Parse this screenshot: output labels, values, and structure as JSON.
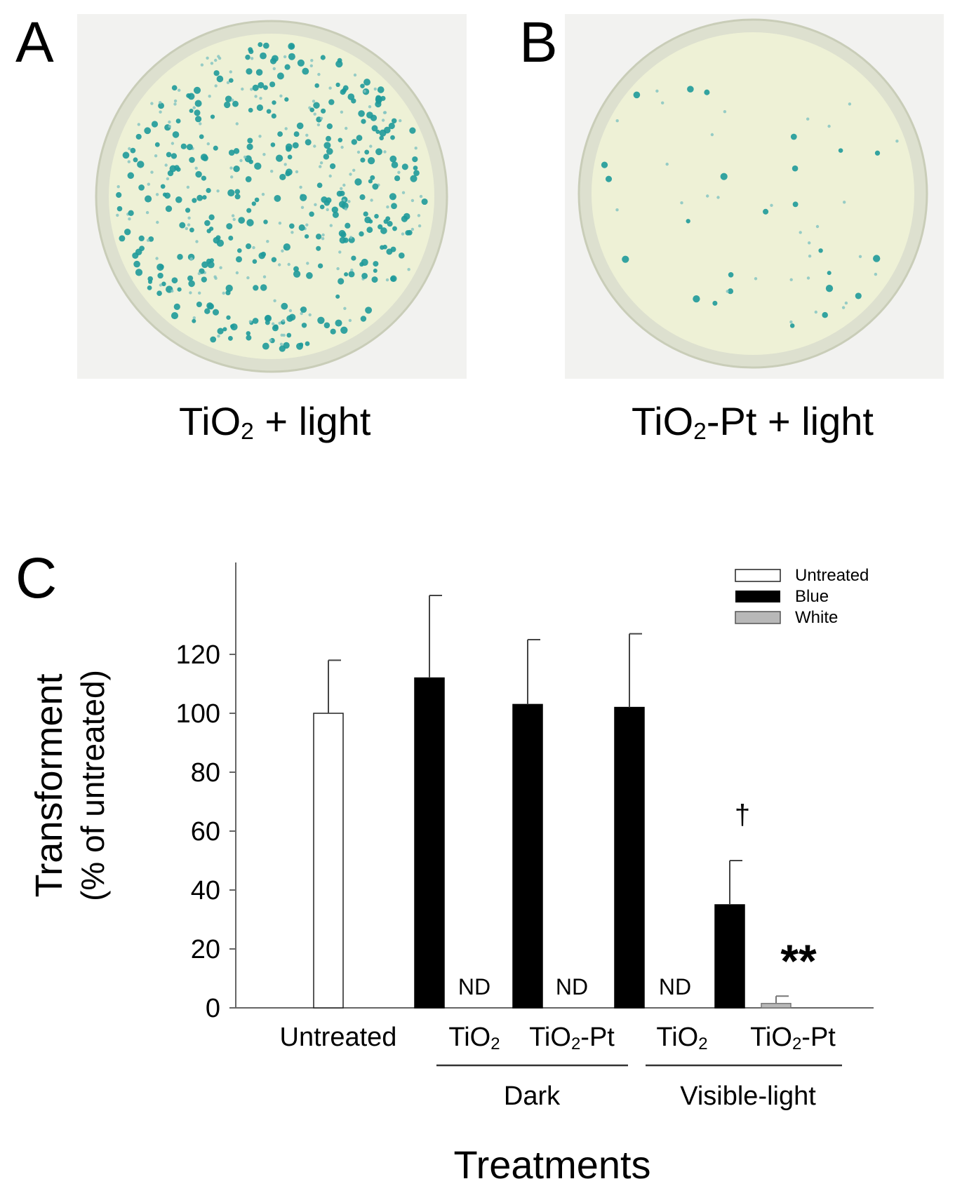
{
  "colors": {
    "plate_rim": "#dde0cf",
    "agar": "#eef1d6",
    "colony_blue": "#1e9a9a",
    "colony_light": "#7fc3c0",
    "bar_untreated": "#ffffff",
    "bar_blue": "#000000",
    "bar_white": "#b8b8b8"
  },
  "panels": {
    "a": {
      "letter": "A",
      "caption_main": "TiO",
      "caption_sub": "2",
      "caption_tail": " + light"
    },
    "b": {
      "letter": "B",
      "caption_main": "TiO",
      "caption_sub": "2",
      "caption_tail": "-Pt + light"
    },
    "c": {
      "letter": "C"
    }
  },
  "chart_data": {
    "type": "bar",
    "ylabel_line1": "Transforment",
    "ylabel_line2": "(% of untreated)",
    "xlabel": "Treatments",
    "ylim": [
      0,
      140
    ],
    "yticks": [
      "0",
      "20",
      "40",
      "60",
      "80",
      "100",
      "120"
    ],
    "legend": {
      "position": "top-right",
      "items": [
        {
          "label": "Untreated",
          "fill": "#ffffff"
        },
        {
          "label": "Blue",
          "fill": "#000000"
        },
        {
          "label": "White",
          "fill": "#b8b8b8"
        }
      ]
    },
    "categories": [
      {
        "group": "",
        "label_main": "Untreated",
        "label_sub": "",
        "label_tail": ""
      },
      {
        "group": "Dark",
        "label_main": "TiO",
        "label_sub": "2",
        "label_tail": ""
      },
      {
        "group": "Dark",
        "label_main": "TiO",
        "label_sub": "2",
        "label_tail": "-Pt"
      },
      {
        "group": "Visible-light",
        "label_main": "TiO",
        "label_sub": "2",
        "label_tail": ""
      },
      {
        "group": "Visible-light",
        "label_main": "TiO",
        "label_sub": "2",
        "label_tail": "-Pt"
      }
    ],
    "groups": [
      "Dark",
      "Visible-light"
    ],
    "bars": [
      {
        "category": 0,
        "series": "Untreated",
        "value": 100,
        "error": 18
      },
      {
        "category": 1,
        "series": "Blue",
        "value": 112,
        "error": 28
      },
      {
        "category": 2,
        "series": "Blue",
        "value": 103,
        "error": 22
      },
      {
        "category": 3,
        "series": "Blue",
        "value": 102,
        "error": 25
      },
      {
        "category": 4,
        "series": "Blue",
        "value": 35,
        "error": 15
      },
      {
        "category": 4,
        "series": "White",
        "value": 1.5,
        "error": 2.5
      }
    ],
    "annotations": {
      "not_detected": "ND",
      "not_detected_categories": [
        1,
        2,
        3
      ],
      "dagger": "†",
      "double_star": "**"
    }
  }
}
